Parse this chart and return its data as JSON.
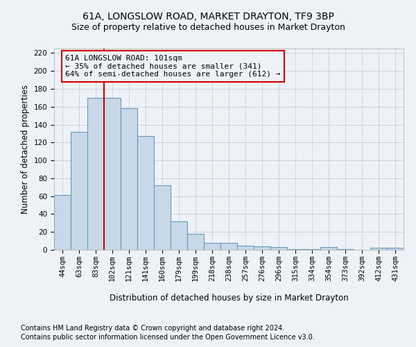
{
  "title": "61A, LONGSLOW ROAD, MARKET DRAYTON, TF9 3BP",
  "subtitle": "Size of property relative to detached houses in Market Drayton",
  "xlabel": "Distribution of detached houses by size in Market Drayton",
  "ylabel": "Number of detached properties",
  "footer1": "Contains HM Land Registry data © Crown copyright and database right 2024.",
  "footer2": "Contains public sector information licensed under the Open Government Licence v3.0.",
  "bin_labels": [
    "44sqm",
    "63sqm",
    "83sqm",
    "102sqm",
    "121sqm",
    "141sqm",
    "160sqm",
    "179sqm",
    "199sqm",
    "218sqm",
    "238sqm",
    "257sqm",
    "276sqm",
    "296sqm",
    "315sqm",
    "334sqm",
    "354sqm",
    "373sqm",
    "392sqm",
    "412sqm",
    "431sqm"
  ],
  "bar_values": [
    61,
    132,
    170,
    170,
    158,
    127,
    72,
    32,
    18,
    8,
    8,
    5,
    4,
    3,
    1,
    1,
    3,
    1,
    0,
    2,
    2
  ],
  "bar_color": "#c8d8e8",
  "bar_edge_color": "#6699bb",
  "grid_color": "#ccccdd",
  "annotation_line1": "61A LONGSLOW ROAD: 101sqm",
  "annotation_line2": "← 35% of detached houses are smaller (341)",
  "annotation_line3": "64% of semi-detached houses are larger (612) →",
  "annotation_box_edge": "#cc0000",
  "vline_x": 2.5,
  "vline_color": "#cc0000",
  "bg_color": "#eef2f7",
  "ylim": [
    0,
    225
  ],
  "yticks": [
    0,
    20,
    40,
    60,
    80,
    100,
    120,
    140,
    160,
    180,
    200,
    220
  ],
  "title_fontsize": 10,
  "subtitle_fontsize": 9,
  "axis_label_fontsize": 8.5,
  "tick_fontsize": 7.5,
  "annotation_fontsize": 8,
  "footer_fontsize": 7
}
